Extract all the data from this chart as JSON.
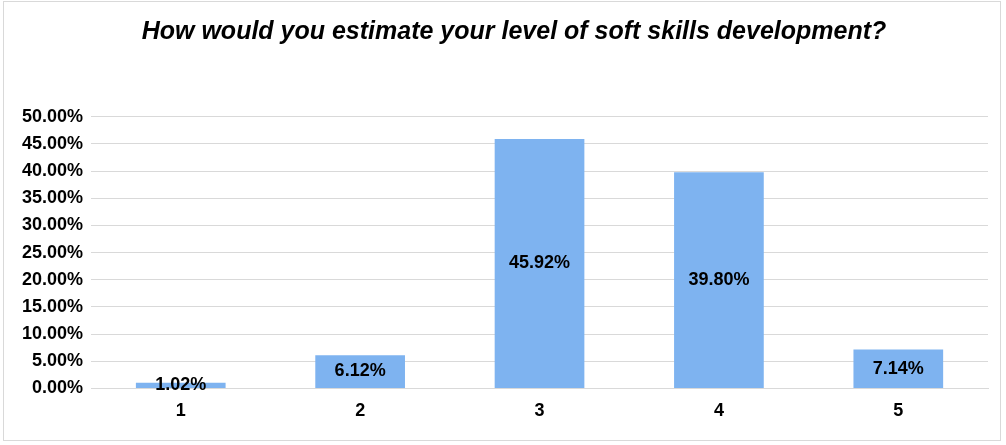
{
  "chart_data": {
    "type": "bar",
    "title": "How would you estimate your level of soft skills development?",
    "categories": [
      "1",
      "2",
      "3",
      "4",
      "5"
    ],
    "values": [
      1.02,
      6.12,
      45.92,
      39.8,
      7.14
    ],
    "value_labels": [
      "1.02%",
      "6.12%",
      "45.92%",
      "39.80%",
      "7.14%"
    ],
    "color": "#7eb3f0",
    "ylim": [
      0,
      50
    ],
    "yticks": [
      {
        "value": 0,
        "label": "0.00%"
      },
      {
        "value": 5,
        "label": "5.00%"
      },
      {
        "value": 10,
        "label": "10.00%"
      },
      {
        "value": 15,
        "label": "15.00%"
      },
      {
        "value": 20,
        "label": "20.00%"
      },
      {
        "value": 25,
        "label": "25.00%"
      },
      {
        "value": 30,
        "label": "30.00%"
      },
      {
        "value": 35,
        "label": "35.00%"
      },
      {
        "value": 40,
        "label": "40.00%"
      },
      {
        "value": 45,
        "label": "45.00%"
      },
      {
        "value": 50,
        "label": "50.00%"
      }
    ],
    "grid": "y",
    "legend": false
  }
}
